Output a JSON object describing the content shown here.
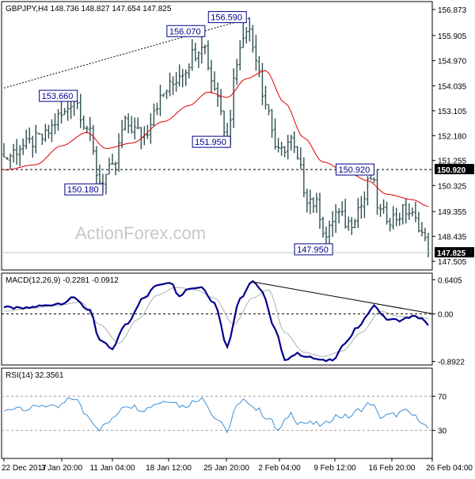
{
  "colors": {
    "background": "#ffffff",
    "frame": "#000000",
    "bar": "#2f4f4f",
    "ma_line": "#e00000",
    "macd_line": "#00008b",
    "signal_line": "#b0b0b0",
    "rsi_line": "#3d8fd6",
    "label_box": "#00008b",
    "watermark": "#c8c8c8",
    "trendline": "#000000",
    "price_tag_bg": "#000000",
    "price_tag_text": "#ffffff"
  },
  "watermark": "ActionForex.com",
  "x_ticks": [
    "22 Dec 2017",
    "3 Jan 20:00",
    "11 Jan 04:00",
    "18 Jan 12:00",
    "25 Jan 20:00",
    "2 Feb 04:00",
    "9 Feb 12:00",
    "16 Feb 20:00",
    "26 Feb 04:00"
  ],
  "chart_data": [
    {
      "type": "bar",
      "panel": "price",
      "title": "GBPJPY,H4  148.736 148.827 147.654 147.825",
      "ylim": [
        147.505,
        156.873
      ],
      "y_ticks": [
        "156.873",
        "155.905",
        "154.970",
        "154.035",
        "153.105",
        "152.180",
        "151.255",
        "150.325",
        "149.355",
        "148.435",
        "147.505"
      ],
      "last_price": "147.825",
      "level_line": {
        "value": 150.92,
        "label": "150.920"
      },
      "trend_line": [
        [
          0,
          153.95
        ],
        [
          77,
          156.55
        ]
      ],
      "annotations": [
        {
          "label": "156.590",
          "bar": 75,
          "value": 156.59
        },
        {
          "label": "156.070",
          "bar": 62,
          "value": 156.07
        },
        {
          "label": "153.660",
          "bar": 22,
          "value": 153.66
        },
        {
          "label": "151.950",
          "bar": 70,
          "value": 151.95
        },
        {
          "label": "150.180",
          "bar": 30,
          "value": 150.18
        },
        {
          "label": "150.920",
          "bar": 115,
          "value": 150.92
        },
        {
          "label": "147.950",
          "bar": 102,
          "value": 147.95
        }
      ],
      "anchors": [
        [
          0,
          151.35
        ],
        [
          6,
          151.8
        ],
        [
          12,
          152.1
        ],
        [
          18,
          152.9
        ],
        [
          22,
          153.55
        ],
        [
          26,
          152.5
        ],
        [
          30,
          150.5
        ],
        [
          34,
          150.9
        ],
        [
          38,
          152.6
        ],
        [
          44,
          152.2
        ],
        [
          48,
          153.4
        ],
        [
          52,
          154.0
        ],
        [
          56,
          154.6
        ],
        [
          60,
          155.3
        ],
        [
          62,
          155.7
        ],
        [
          66,
          154.0
        ],
        [
          70,
          152.2
        ],
        [
          73,
          155.0
        ],
        [
          76,
          156.3
        ],
        [
          79,
          155.2
        ],
        [
          82,
          153.4
        ],
        [
          86,
          151.5
        ],
        [
          90,
          152.0
        ],
        [
          92,
          151.2
        ],
        [
          95,
          149.9
        ],
        [
          98,
          149.6
        ],
        [
          101,
          148.4
        ],
        [
          104,
          149.3
        ],
        [
          108,
          148.9
        ],
        [
          112,
          149.6
        ],
        [
          115,
          150.6
        ],
        [
          118,
          149.3
        ],
        [
          122,
          149.1
        ],
        [
          126,
          149.4
        ],
        [
          130,
          148.9
        ],
        [
          132,
          148.2
        ],
        [
          133,
          147.85
        ]
      ],
      "ma_anchors": [
        [
          0,
          150.9
        ],
        [
          10,
          151.1
        ],
        [
          18,
          151.8
        ],
        [
          26,
          152.3
        ],
        [
          32,
          151.7
        ],
        [
          40,
          151.9
        ],
        [
          50,
          152.7
        ],
        [
          58,
          153.3
        ],
        [
          64,
          153.8
        ],
        [
          70,
          153.6
        ],
        [
          76,
          154.3
        ],
        [
          82,
          154.6
        ],
        [
          88,
          153.4
        ],
        [
          94,
          152.1
        ],
        [
          100,
          151.2
        ],
        [
          108,
          150.8
        ],
        [
          114,
          150.5
        ],
        [
          120,
          150.0
        ],
        [
          128,
          149.8
        ],
        [
          133,
          149.55
        ]
      ]
    },
    {
      "type": "line",
      "panel": "macd",
      "title": "MACD(12,26,9) -0.2281 -0.0912",
      "ylim": [
        -0.9,
        0.66
      ],
      "y_ticks": [
        "0.6405",
        "0.00",
        "-0.8922"
      ],
      "zero_line": 0,
      "trend_line": [
        [
          78,
          0.6
        ],
        [
          133,
          0.0
        ]
      ],
      "macd_anchors": [
        [
          0,
          0.12
        ],
        [
          6,
          0.1
        ],
        [
          12,
          0.15
        ],
        [
          18,
          0.2
        ],
        [
          22,
          0.3
        ],
        [
          27,
          0.05
        ],
        [
          30,
          -0.5
        ],
        [
          34,
          -0.65
        ],
        [
          38,
          -0.2
        ],
        [
          44,
          0.3
        ],
        [
          48,
          0.55
        ],
        [
          52,
          0.6
        ],
        [
          55,
          0.35
        ],
        [
          58,
          0.48
        ],
        [
          62,
          0.5
        ],
        [
          66,
          0.2
        ],
        [
          70,
          -0.6
        ],
        [
          74,
          0.3
        ],
        [
          78,
          0.62
        ],
        [
          81,
          0.4
        ],
        [
          85,
          -0.3
        ],
        [
          88,
          -0.85
        ],
        [
          92,
          -0.75
        ],
        [
          96,
          -0.82
        ],
        [
          100,
          -0.88
        ],
        [
          103,
          -0.85
        ],
        [
          107,
          -0.55
        ],
        [
          111,
          -0.25
        ],
        [
          116,
          0.15
        ],
        [
          120,
          -0.1
        ],
        [
          124,
          -0.12
        ],
        [
          128,
          -0.05
        ],
        [
          131,
          -0.08
        ],
        [
          133,
          -0.23
        ]
      ],
      "signal_anchors": [
        [
          0,
          0.05
        ],
        [
          8,
          0.1
        ],
        [
          16,
          0.15
        ],
        [
          24,
          0.22
        ],
        [
          30,
          -0.2
        ],
        [
          36,
          -0.55
        ],
        [
          42,
          -0.1
        ],
        [
          48,
          0.35
        ],
        [
          54,
          0.5
        ],
        [
          60,
          0.45
        ],
        [
          66,
          0.3
        ],
        [
          72,
          -0.2
        ],
        [
          78,
          0.3
        ],
        [
          83,
          0.45
        ],
        [
          88,
          -0.35
        ],
        [
          94,
          -0.72
        ],
        [
          100,
          -0.8
        ],
        [
          106,
          -0.7
        ],
        [
          112,
          -0.35
        ],
        [
          118,
          0.05
        ],
        [
          124,
          -0.05
        ],
        [
          130,
          -0.05
        ],
        [
          133,
          -0.09
        ]
      ]
    },
    {
      "type": "line",
      "panel": "rsi",
      "title": "RSI(14) 32.3561",
      "ylim": [
        0,
        100
      ],
      "y_ticks": [
        "70",
        "30"
      ],
      "levels": [
        70,
        30
      ],
      "rsi_anchors": [
        [
          0,
          52
        ],
        [
          4,
          58
        ],
        [
          8,
          55
        ],
        [
          12,
          60
        ],
        [
          16,
          56
        ],
        [
          22,
          68
        ],
        [
          26,
          48
        ],
        [
          30,
          32
        ],
        [
          33,
          40
        ],
        [
          38,
          60
        ],
        [
          44,
          55
        ],
        [
          48,
          62
        ],
        [
          52,
          66
        ],
        [
          56,
          58
        ],
        [
          60,
          64
        ],
        [
          62,
          70
        ],
        [
          66,
          45
        ],
        [
          70,
          30
        ],
        [
          73,
          58
        ],
        [
          76,
          66
        ],
        [
          79,
          55
        ],
        [
          83,
          44
        ],
        [
          86,
          30
        ],
        [
          90,
          50
        ],
        [
          92,
          40
        ],
        [
          96,
          38
        ],
        [
          100,
          36
        ],
        [
          104,
          47
        ],
        [
          108,
          46
        ],
        [
          112,
          55
        ],
        [
          115,
          62
        ],
        [
          118,
          46
        ],
        [
          122,
          48
        ],
        [
          126,
          52
        ],
        [
          130,
          44
        ],
        [
          133,
          32.36
        ]
      ]
    }
  ]
}
